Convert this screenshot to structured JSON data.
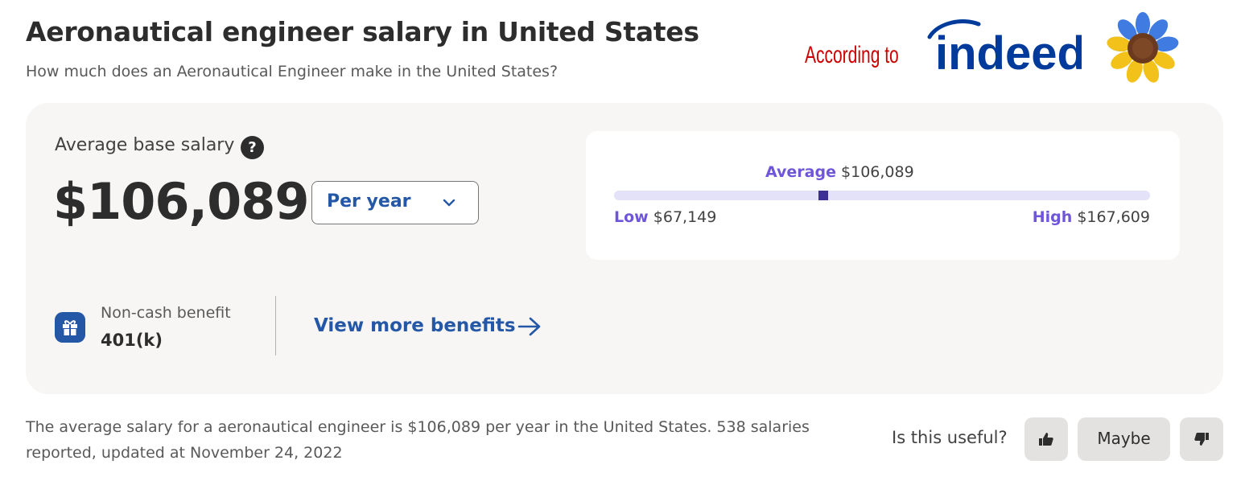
{
  "header": {
    "title": "Aeronautical engineer salary in United States",
    "subtitle": "How much does an Aeronautical Engineer make in the United States?"
  },
  "branding": {
    "according_to": "According to",
    "logo_text": "indeed",
    "logo_color": "#003a9b",
    "according_color": "#cc0000"
  },
  "salary": {
    "label": "Average base salary",
    "help_glyph": "?",
    "amount": "$106,089",
    "period": "Per year"
  },
  "range": {
    "average_label": "Average",
    "average_value": "$106,089",
    "low_label": "Low",
    "low_value": "$67,149",
    "high_label": "High",
    "high_value": "$167,609",
    "average_position_fraction": 0.39
  },
  "benefits": {
    "type_label": "Non-cash benefit",
    "value": "401(k)",
    "more_link": "View more benefits"
  },
  "summary": {
    "text": "The average salary for a aeronautical engineer is $106,089 per year in the United States.  538 salaries reported, updated at November 24, 2022"
  },
  "feedback": {
    "question": "Is this useful?",
    "maybe_label": "Maybe"
  },
  "colors": {
    "accent_blue": "#2557a7",
    "accent_purple": "#6f56d9",
    "card_bg": "#f7f6f5"
  }
}
